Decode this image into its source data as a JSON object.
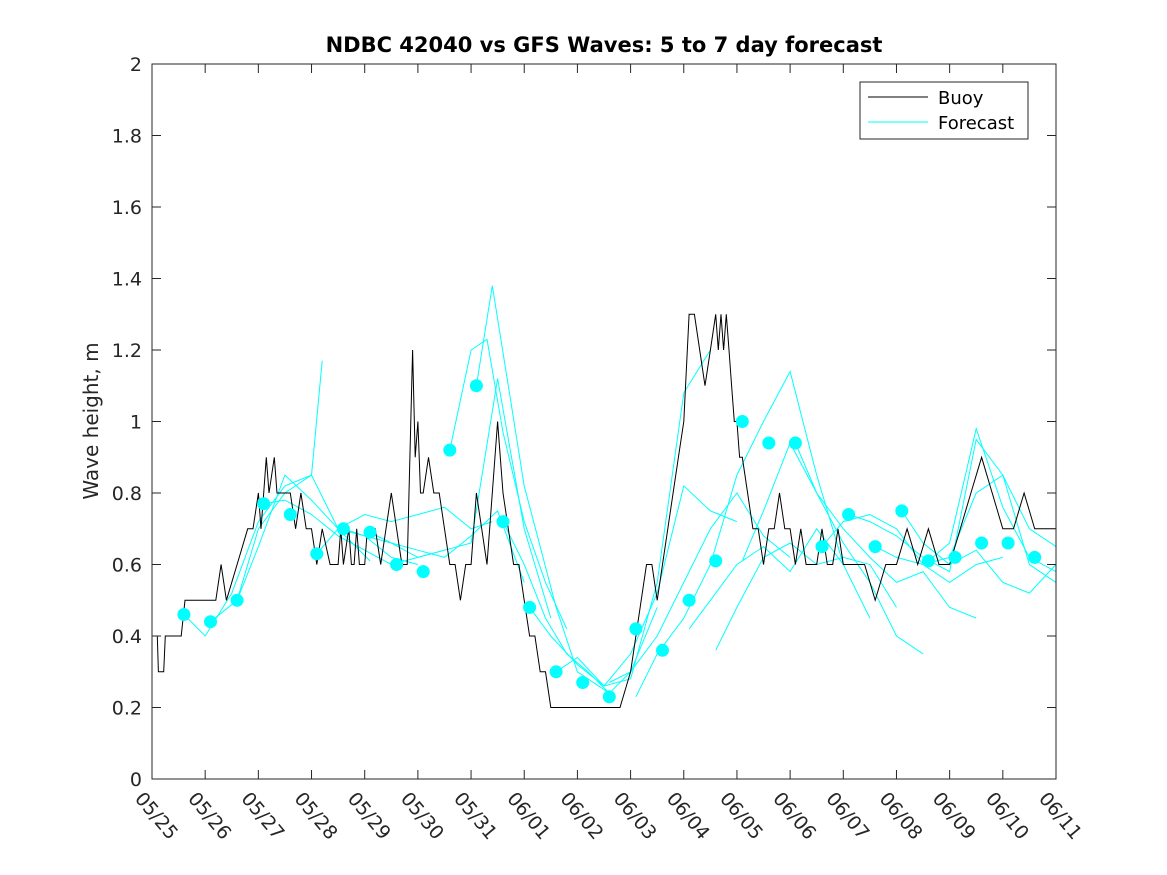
{
  "chart_data": {
    "type": "line",
    "title": "NDBC 42040 vs GFS Waves: 5 to 7 day forecast",
    "xlabel": "",
    "ylabel": "Wave height, m",
    "ylim": [
      0,
      2
    ],
    "yticks": [
      0,
      0.2,
      0.4,
      0.6,
      0.8,
      1,
      1.2,
      1.4,
      1.6,
      1.8,
      2
    ],
    "ytick_labels": [
      "0",
      "0.2",
      "0.4",
      "0.6",
      "0.8",
      "1",
      "1.2",
      "1.4",
      "1.6",
      "1.8",
      "2"
    ],
    "x_unit": "days since 05/25 00:00",
    "xlim": [
      0,
      17
    ],
    "xtick_labels": [
      "05/25",
      "05/26",
      "05/27",
      "05/28",
      "05/29",
      "05/30",
      "05/31",
      "06/01",
      "06/02",
      "06/03",
      "06/04",
      "06/05",
      "06/06",
      "06/07",
      "06/08",
      "06/09",
      "06/10",
      "06/11"
    ],
    "grid": false,
    "legend_position": "top-right",
    "colors": {
      "buoy": "#000000",
      "forecast": "#00ffff"
    },
    "series": [
      {
        "name": "Buoy",
        "style": "line",
        "x": [
          0,
          0.1,
          0.12,
          0.22,
          0.25,
          0.55,
          0.62,
          0.7,
          1.2,
          1.3,
          1.4,
          1.6,
          1.8,
          1.9,
          2.0,
          2.05,
          2.1,
          2.15,
          2.2,
          2.3,
          2.35,
          2.4,
          2.6,
          2.7,
          2.8,
          2.9,
          3.0,
          3.1,
          3.2,
          3.35,
          3.5,
          3.55,
          3.6,
          3.7,
          3.75,
          3.8,
          3.85,
          3.9,
          4.0,
          4.05,
          4.2,
          4.3,
          4.4,
          4.5,
          4.6,
          4.7,
          4.8,
          4.9,
          4.95,
          5.0,
          5.05,
          5.1,
          5.2,
          5.3,
          5.4,
          5.5,
          5.6,
          5.7,
          5.8,
          5.9,
          6.0,
          6.05,
          6.1,
          6.2,
          6.3,
          6.4,
          6.5,
          6.55,
          6.6,
          6.7,
          6.8,
          6.9,
          7.0,
          7.1,
          7.2,
          7.3,
          7.4,
          7.5,
          7.6,
          7.7,
          7.8,
          7.9,
          8.0,
          8.5,
          8.8,
          8.9,
          9.0,
          9.1,
          9.2,
          9.3,
          9.4,
          9.5,
          9.6,
          9.7,
          9.8,
          9.9,
          10.0,
          10.1,
          10.2,
          10.3,
          10.4,
          10.5,
          10.6,
          10.65,
          10.7,
          10.75,
          10.8,
          10.85,
          10.9,
          10.95,
          11.0,
          11.05,
          11.1,
          11.2,
          11.3,
          11.4,
          11.5,
          11.6,
          11.7,
          11.8,
          11.9,
          12.0,
          12.1,
          12.2,
          12.3,
          12.4,
          12.5,
          12.6,
          12.7,
          12.8,
          12.9,
          13.0,
          13.2,
          13.4,
          13.6,
          13.8,
          14.0,
          14.2,
          14.4,
          14.6,
          14.8,
          15.0,
          15.2,
          15.4,
          15.6,
          15.8,
          16.0,
          16.2,
          16.4,
          16.6,
          16.8,
          17.0
        ],
        "y": [
          0.4,
          0.4,
          0.3,
          0.3,
          0.4,
          0.4,
          0.5,
          0.5,
          0.5,
          0.6,
          0.5,
          0.6,
          0.7,
          0.7,
          0.8,
          0.7,
          0.8,
          0.9,
          0.8,
          0.9,
          0.8,
          0.8,
          0.8,
          0.7,
          0.8,
          0.7,
          0.7,
          0.6,
          0.7,
          0.6,
          0.6,
          0.7,
          0.6,
          0.7,
          0.6,
          0.6,
          0.7,
          0.6,
          0.6,
          0.7,
          0.7,
          0.6,
          0.7,
          0.8,
          0.7,
          0.6,
          0.6,
          1.2,
          0.9,
          1.0,
          0.8,
          0.8,
          0.9,
          0.8,
          0.8,
          0.7,
          0.6,
          0.6,
          0.5,
          0.6,
          0.6,
          0.7,
          0.8,
          0.7,
          0.6,
          0.8,
          1.0,
          0.9,
          0.8,
          0.7,
          0.6,
          0.6,
          0.5,
          0.4,
          0.4,
          0.3,
          0.3,
          0.2,
          0.2,
          0.2,
          0.2,
          0.2,
          0.2,
          0.2,
          0.2,
          0.25,
          0.3,
          0.4,
          0.5,
          0.6,
          0.6,
          0.5,
          0.6,
          0.7,
          0.8,
          0.9,
          1.0,
          1.3,
          1.3,
          1.2,
          1.1,
          1.2,
          1.3,
          1.2,
          1.3,
          1.2,
          1.3,
          1.2,
          1.1,
          1.0,
          1.0,
          0.9,
          0.9,
          0.8,
          0.7,
          0.7,
          0.6,
          0.7,
          0.7,
          0.8,
          0.7,
          0.7,
          0.6,
          0.7,
          0.6,
          0.6,
          0.6,
          0.7,
          0.6,
          0.6,
          0.7,
          0.6,
          0.6,
          0.6,
          0.5,
          0.6,
          0.6,
          0.7,
          0.6,
          0.7,
          0.6,
          0.6,
          0.7,
          0.8,
          0.9,
          0.8,
          0.7,
          0.7,
          0.8,
          0.7,
          0.7,
          0.7
        ]
      },
      {
        "name": "Forecast",
        "style": "line",
        "lines": [
          {
            "x": [
              0.6,
              1.0,
              1.5,
              2.0,
              2.5,
              3.0,
              3.2
            ],
            "y": [
              0.46,
              0.4,
              0.52,
              0.72,
              0.82,
              0.85,
              1.17
            ]
          },
          {
            "x": [
              1.1,
              1.6,
              2.0,
              2.5,
              3.0,
              3.5,
              4.1
            ],
            "y": [
              0.44,
              0.5,
              0.7,
              0.8,
              0.85,
              0.7,
              0.61
            ]
          },
          {
            "x": [
              1.6,
              2.0,
              2.5,
              3.0,
              3.5,
              4.0,
              4.5,
              5.0
            ],
            "y": [
              0.5,
              0.65,
              0.85,
              0.78,
              0.7,
              0.68,
              0.62,
              0.6
            ]
          },
          {
            "x": [
              2.1,
              2.5,
              3.0,
              3.5,
              4.0,
              4.5,
              5.0,
              5.5
            ],
            "y": [
              0.77,
              0.78,
              0.74,
              0.68,
              0.64,
              0.6,
              0.62,
              0.64
            ]
          },
          {
            "x": [
              3.1,
              3.5,
              4.0,
              4.5,
              5.0,
              5.5,
              6.0,
              6.4
            ],
            "y": [
              0.63,
              0.7,
              0.74,
              0.72,
              0.74,
              0.76,
              0.7,
              0.72
            ]
          },
          {
            "x": [
              3.6,
              4.0,
              4.5,
              5.0,
              5.5,
              6.0,
              6.5,
              7.0
            ],
            "y": [
              0.7,
              0.68,
              0.66,
              0.64,
              0.62,
              0.68,
              0.75,
              0.55
            ]
          },
          {
            "x": [
              4.1,
              4.5,
              5.0,
              5.5,
              6.0,
              6.5,
              7.0,
              7.5
            ],
            "y": [
              0.69,
              0.66,
              0.62,
              0.64,
              0.66,
              1.12,
              0.7,
              0.45
            ]
          },
          {
            "x": [
              5.6,
              6.0,
              6.3,
              6.6,
              7.0,
              7.4,
              7.8
            ],
            "y": [
              0.92,
              1.2,
              1.23,
              0.97,
              0.72,
              0.55,
              0.42
            ]
          },
          {
            "x": [
              6.1,
              6.4,
              6.7,
              7.0,
              7.3,
              7.6,
              8.0,
              8.6
            ],
            "y": [
              1.1,
              1.38,
              1.1,
              0.82,
              0.65,
              0.48,
              0.3,
              0.24
            ]
          },
          {
            "x": [
              6.6,
              7.0,
              7.4,
              7.8,
              8.2,
              8.6,
              9.0,
              9.5
            ],
            "y": [
              0.72,
              0.6,
              0.45,
              0.35,
              0.3,
              0.24,
              0.3,
              0.48
            ]
          },
          {
            "x": [
              7.1,
              7.5,
              8.0,
              8.5,
              9.0,
              9.5,
              10.0,
              10.5
            ],
            "y": [
              0.48,
              0.4,
              0.32,
              0.26,
              0.28,
              0.55,
              1.08,
              1.2
            ]
          },
          {
            "x": [
              7.6,
              8.0,
              8.5,
              9.0,
              9.5,
              10.0,
              10.5,
              11.0
            ],
            "y": [
              0.3,
              0.34,
              0.26,
              0.35,
              0.52,
              0.82,
              0.75,
              0.72
            ]
          },
          {
            "x": [
              8.6,
              9.0,
              9.5,
              10.0,
              10.5,
              11.0,
              11.5,
              12.0
            ],
            "y": [
              0.27,
              0.3,
              0.4,
              0.55,
              0.7,
              0.8,
              0.68,
              0.62
            ]
          },
          {
            "x": [
              9.1,
              9.5,
              10.0,
              10.5,
              11.0,
              11.5,
              12.0,
              12.5,
              13.0
            ],
            "y": [
              0.23,
              0.35,
              0.45,
              0.6,
              0.85,
              1.0,
              1.14,
              0.85,
              0.6
            ]
          },
          {
            "x": [
              10.1,
              10.5,
              11.0,
              11.5,
              12.0,
              12.5,
              13.0,
              13.5
            ],
            "y": [
              0.42,
              0.5,
              0.6,
              0.65,
              0.58,
              0.7,
              0.6,
              0.45
            ]
          },
          {
            "x": [
              10.6,
              11.0,
              11.5,
              12.0,
              12.5,
              13.0,
              13.5,
              14.0
            ],
            "y": [
              0.36,
              0.48,
              0.62,
              0.66,
              0.6,
              0.62,
              0.6,
              0.48
            ]
          },
          {
            "x": [
              11.1,
              11.5,
              12.0,
              12.5,
              13.0,
              13.5,
              14.0,
              14.5
            ],
            "y": [
              0.61,
              0.75,
              0.94,
              0.8,
              0.66,
              0.55,
              0.4,
              0.35
            ]
          },
          {
            "x": [
              12.1,
              12.5,
              13.0,
              13.5,
              14.0,
              14.5,
              15.0,
              15.5
            ],
            "y": [
              0.94,
              0.8,
              0.7,
              0.62,
              0.55,
              0.58,
              0.48,
              0.45
            ]
          },
          {
            "x": [
              12.6,
              13.0,
              13.5,
              14.0,
              14.5,
              15.0,
              15.5,
              16.0
            ],
            "y": [
              0.65,
              0.72,
              0.74,
              0.7,
              0.6,
              0.55,
              0.6,
              0.62
            ]
          },
          {
            "x": [
              13.1,
              13.5,
              14.0,
              14.5,
              15.0,
              15.5,
              16.0,
              16.5,
              17.0
            ],
            "y": [
              0.74,
              0.72,
              0.68,
              0.62,
              0.58,
              0.95,
              0.85,
              0.6,
              0.55
            ]
          },
          {
            "x": [
              13.6,
              14.0,
              14.5,
              15.0,
              15.5,
              16.0,
              16.5,
              17.0
            ],
            "y": [
              0.65,
              0.62,
              0.6,
              0.62,
              0.8,
              0.85,
              0.7,
              0.65
            ]
          },
          {
            "x": [
              14.1,
              14.5,
              15.0,
              15.5,
              16.0,
              16.5,
              17.0
            ],
            "y": [
              0.75,
              0.66,
              0.6,
              0.64,
              0.55,
              0.52,
              0.6
            ]
          },
          {
            "x": [
              14.6,
              15.0,
              15.5,
              16.0,
              16.5,
              17.0
            ],
            "y": [
              0.61,
              0.66,
              0.98,
              0.76,
              0.62,
              0.58
            ]
          }
        ]
      },
      {
        "name": "",
        "style": "markers",
        "x": [
          0.6,
          1.1,
          1.6,
          2.1,
          2.6,
          3.1,
          3.6,
          4.1,
          4.6,
          5.1,
          5.6,
          6.1,
          6.6,
          7.1,
          7.6,
          8.1,
          8.6,
          9.1,
          9.6,
          10.1,
          10.6,
          11.1,
          11.6,
          12.1,
          12.6,
          13.1,
          13.6,
          14.1,
          14.6,
          15.1,
          15.6,
          16.1,
          16.6
        ],
        "y": [
          0.46,
          0.44,
          0.5,
          0.77,
          0.74,
          0.63,
          0.7,
          0.69,
          0.6,
          0.58,
          0.92,
          1.1,
          0.72,
          0.48,
          0.3,
          0.27,
          0.23,
          0.42,
          0.36,
          0.5,
          0.61,
          1.0,
          0.94,
          0.94,
          0.65,
          0.74,
          0.65,
          0.75,
          0.61,
          0.62,
          0.66,
          0.66,
          0.62
        ]
      }
    ]
  }
}
